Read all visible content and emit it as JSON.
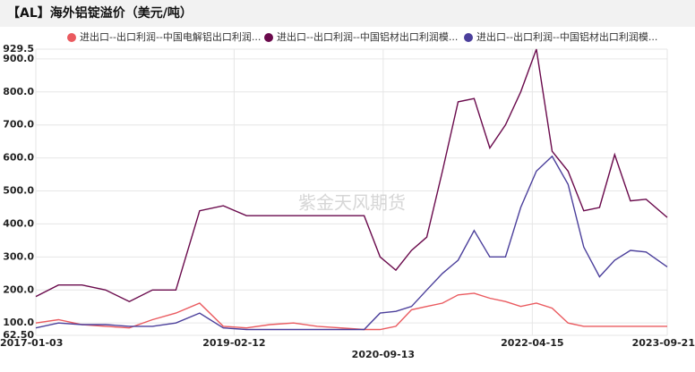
{
  "title": "【AL】海外铝锭溢价（美元/吨）",
  "chart_data": {
    "type": "line",
    "watermark": "紫金天风期货",
    "x": [
      "2017-01-03",
      "2017-04-01",
      "2017-07-01",
      "2017-10-01",
      "2018-01-01",
      "2018-04-01",
      "2018-07-01",
      "2018-10-01",
      "2019-01-01",
      "2019-04-01",
      "2019-07-01",
      "2019-10-01",
      "2020-01-01",
      "2020-04-01",
      "2020-07-01",
      "2020-09-01",
      "2020-11-01",
      "2021-01-01",
      "2021-03-01",
      "2021-05-01",
      "2021-07-01",
      "2021-09-01",
      "2021-11-01",
      "2022-01-01",
      "2022-03-01",
      "2022-05-01",
      "2022-07-01",
      "2022-09-01",
      "2022-11-01",
      "2023-01-01",
      "2023-03-01",
      "2023-05-01",
      "2023-07-01",
      "2023-09-21"
    ],
    "series": [
      {
        "name": "进出口--出口利润--中国电解铝出口利润...",
        "color": "#ea5a5f",
        "values": [
          100,
          110,
          95,
          90,
          85,
          110,
          130,
          160,
          90,
          85,
          95,
          100,
          90,
          85,
          80,
          80,
          90,
          140,
          150,
          160,
          185,
          190,
          175,
          165,
          150,
          160,
          145,
          100,
          90,
          90,
          90,
          90,
          90,
          90
        ]
      },
      {
        "name": "进出口--出口利润--中国铝材出口利润模...",
        "color": "#6a0a4c",
        "values": [
          180,
          215,
          215,
          200,
          165,
          200,
          200,
          440,
          455,
          425,
          425,
          425,
          425,
          425,
          425,
          300,
          260,
          320,
          360,
          560,
          770,
          780,
          630,
          700,
          800,
          929.5,
          620,
          560,
          440,
          450,
          610,
          470,
          475,
          420
        ]
      },
      {
        "name": "进出口--出口利润--中国铝材出口利润模...",
        "color": "#4b3f9b",
        "values": [
          85,
          100,
          95,
          95,
          90,
          90,
          100,
          130,
          85,
          80,
          80,
          80,
          80,
          80,
          80,
          130,
          135,
          150,
          200,
          250,
          290,
          380,
          300,
          300,
          450,
          560,
          605,
          520,
          330,
          240,
          290,
          320,
          315,
          270
        ]
      }
    ],
    "xlim": [
      "2017-01-03",
      "2023-09-21"
    ],
    "xticks": [
      "2017-01-03",
      "2019-02-12",
      "2020-09-13",
      "2022-04-15",
      "2023-09-21"
    ],
    "ylim": [
      62.5,
      929.5
    ],
    "yticks": [
      {
        "value": 62.5,
        "label": "62.50"
      },
      {
        "value": 100,
        "label": "100.0"
      },
      {
        "value": 200,
        "label": "200.0"
      },
      {
        "value": 300,
        "label": "300.0"
      },
      {
        "value": 400,
        "label": "400.0"
      },
      {
        "value": 500,
        "label": "500.0"
      },
      {
        "value": 600,
        "label": "600.0"
      },
      {
        "value": 700,
        "label": "700.0"
      },
      {
        "value": 800,
        "label": "800.0"
      },
      {
        "value": 900,
        "label": "900.0"
      },
      929.5
    ],
    "grid": true
  }
}
